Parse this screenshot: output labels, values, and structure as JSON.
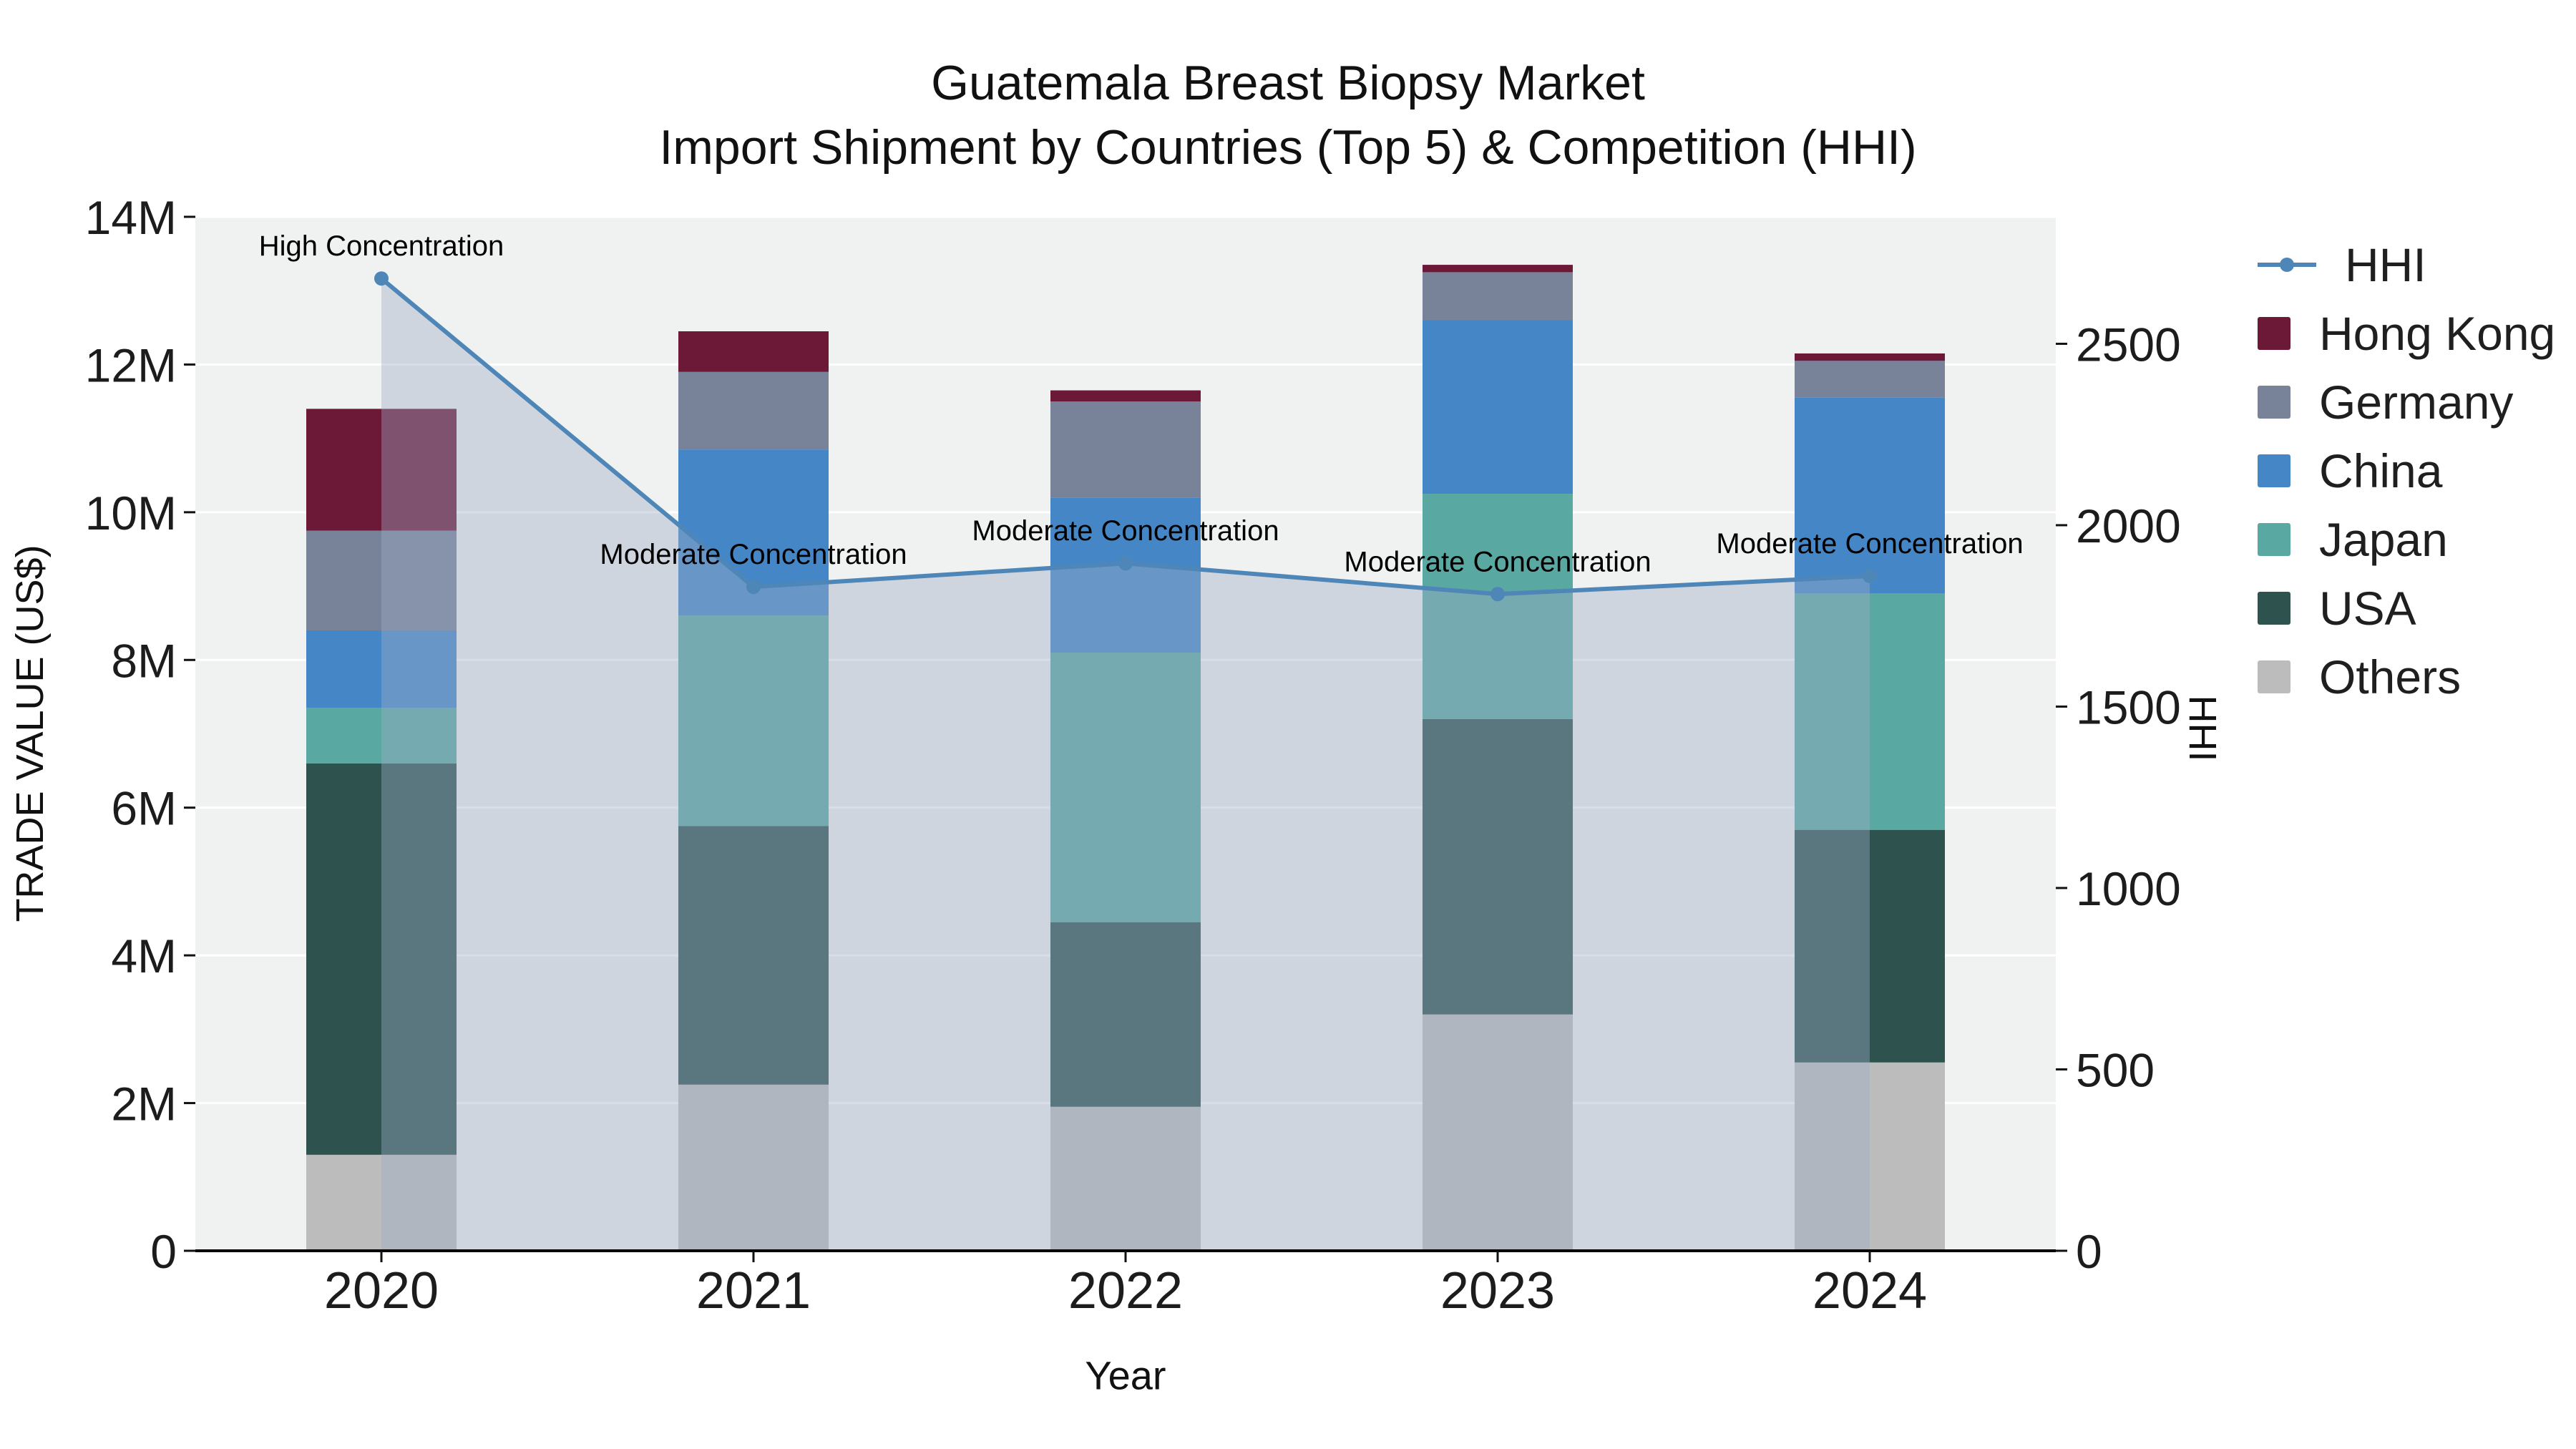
{
  "chart_data": {
    "type": "bar",
    "subtype": "stacked-bar-with-line-area",
    "title": "Guatemala Breast Biopsy Market",
    "subtitle": "Import Shipment by Countries (Top 5) & Competition (HHI)",
    "xlabel": "Year",
    "categories": [
      "2020",
      "2021",
      "2022",
      "2023",
      "2024"
    ],
    "values_unit": "million US$",
    "series": [
      {
        "name": "Others",
        "color": "#bcbcbc",
        "values_musd": [
          1.3,
          2.25,
          1.95,
          3.2,
          2.55
        ]
      },
      {
        "name": "USA",
        "color": "#2e534f",
        "values_musd": [
          5.3,
          3.5,
          2.5,
          4.0,
          3.15
        ]
      },
      {
        "name": "Japan",
        "color": "#5aa8a2",
        "values_musd": [
          0.75,
          2.85,
          3.65,
          3.05,
          3.2
        ]
      },
      {
        "name": "China",
        "color": "#4587c6",
        "values_musd": [
          1.05,
          2.25,
          2.1,
          2.35,
          2.65
        ]
      },
      {
        "name": "Germany",
        "color": "#78839a",
        "values_musd": [
          1.35,
          1.05,
          1.3,
          0.65,
          0.5
        ]
      },
      {
        "name": "Hong Kong",
        "color": "#6c1837",
        "values_musd": [
          1.65,
          0.55,
          0.15,
          0.1,
          0.1
        ]
      }
    ],
    "hhi": {
      "name": "HHI",
      "values": [
        2680,
        1830,
        1895,
        1810,
        1860
      ],
      "line_color": "#4e86b8",
      "area_fill": "rgba(157,172,198,0.40)"
    },
    "annotations": [
      {
        "x": "2020",
        "text": "High Concentration"
      },
      {
        "x": "2021",
        "text": "Moderate Concentration"
      },
      {
        "x": "2022",
        "text": "Moderate Concentration"
      },
      {
        "x": "2023",
        "text": "Moderate Concentration"
      },
      {
        "x": "2024",
        "text": "Moderate Concentration"
      }
    ],
    "y_left": {
      "label": "TRADE VALUE (US$)",
      "max_musd": 14,
      "ticks": [
        {
          "musd": 0,
          "label": "0"
        },
        {
          "musd": 2,
          "label": "2M"
        },
        {
          "musd": 4,
          "label": "4M"
        },
        {
          "musd": 6,
          "label": "6M"
        },
        {
          "musd": 8,
          "label": "8M"
        },
        {
          "musd": 10,
          "label": "10M"
        },
        {
          "musd": 12,
          "label": "12M"
        },
        {
          "musd": 14,
          "label": "14M"
        }
      ]
    },
    "y_right": {
      "label": "HHI",
      "max": 2850,
      "ticks": [
        {
          "v": 0,
          "label": "0"
        },
        {
          "v": 500,
          "label": "500"
        },
        {
          "v": 1000,
          "label": "1000"
        },
        {
          "v": 1500,
          "label": "1500"
        },
        {
          "v": 2000,
          "label": "2000"
        },
        {
          "v": 2500,
          "label": "2500"
        }
      ]
    },
    "legend": [
      {
        "name": "HHI",
        "swatch": "line"
      },
      {
        "name": "Hong Kong",
        "swatch": "square",
        "color": "#6c1837"
      },
      {
        "name": "Germany",
        "swatch": "square",
        "color": "#78839a"
      },
      {
        "name": "China",
        "swatch": "square",
        "color": "#4587c6"
      },
      {
        "name": "Japan",
        "swatch": "square",
        "color": "#5aa8a2"
      },
      {
        "name": "USA",
        "swatch": "square",
        "color": "#2e534f"
      },
      {
        "name": "Others",
        "swatch": "square",
        "color": "#bcbcbc"
      }
    ],
    "plot_bg": "#f0f1f1",
    "grid_color": "#ffffff",
    "axis_line_color": "#000000"
  }
}
